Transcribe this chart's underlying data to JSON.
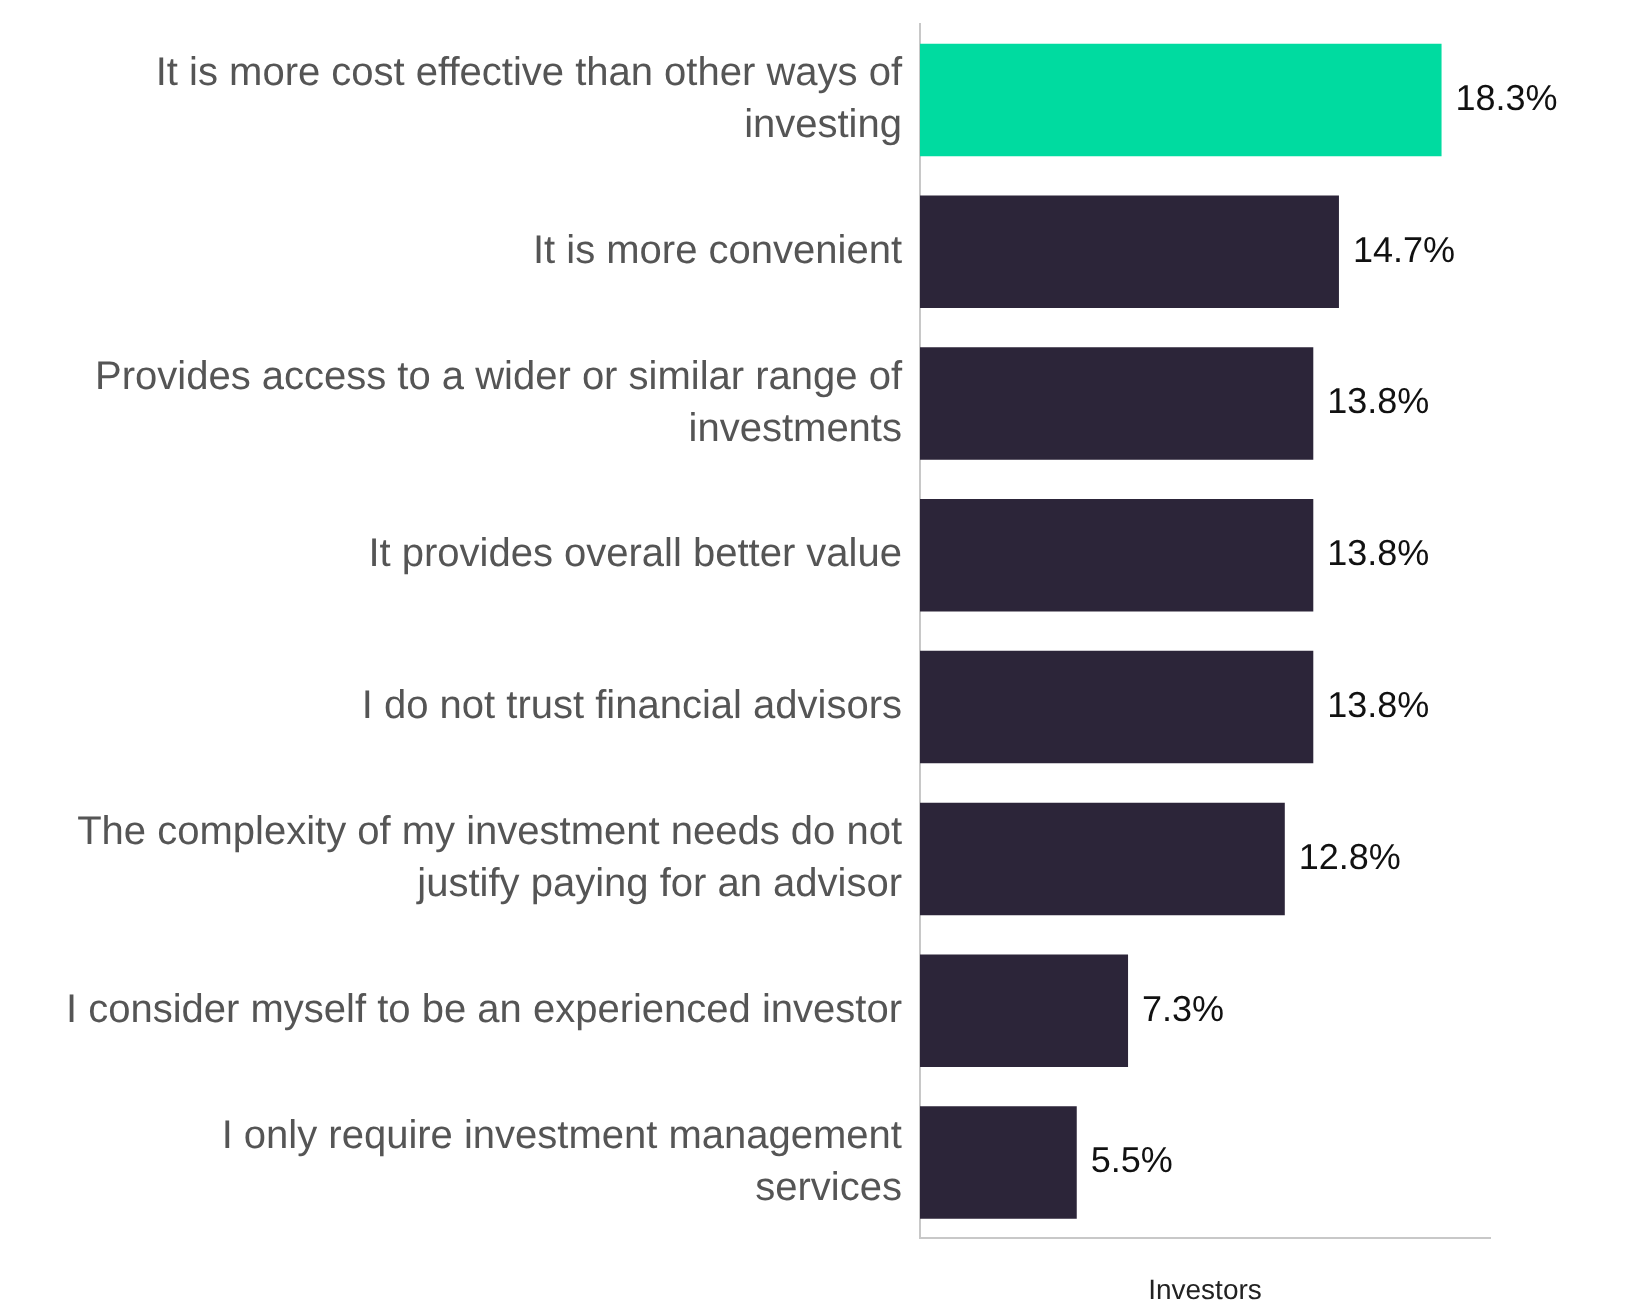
{
  "chart_data": {
    "type": "bar",
    "orientation": "horizontal",
    "xlabel": "Investors",
    "categories": [
      "It is more cost effective than other ways of investing",
      "It is more convenient",
      "Provides access to a wider or similar range of investments",
      "It provides overall better value",
      "I do not trust financial advisors",
      "The complexity of my investment needs do not justify paying for an advisor",
      "I consider myself to be an experienced investor",
      "I only require investment management services"
    ],
    "values": [
      18.3,
      14.7,
      13.8,
      13.8,
      13.8,
      12.8,
      7.3,
      5.5
    ],
    "colors": [
      "#00dba0",
      "#2c2539",
      "#2c2539",
      "#2c2539",
      "#2c2539",
      "#2c2539",
      "#2c2539",
      "#2c2539"
    ],
    "value_labels": [
      "18.3%",
      "14.7%",
      "13.8%",
      "13.8%",
      "13.8%",
      "12.8%",
      "7.3%",
      "5.5%"
    ],
    "tick_labels": "y",
    "grid": false,
    "legend": false
  }
}
